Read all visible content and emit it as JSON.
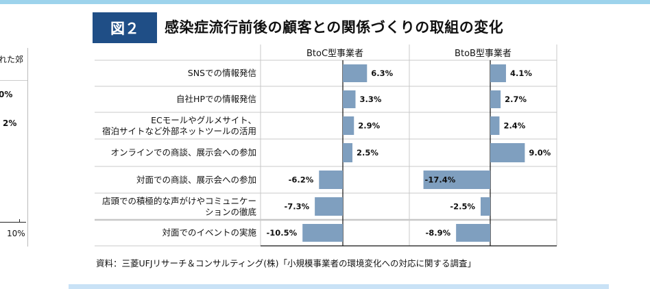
{
  "figure_label": "図２",
  "title": "感染症流行前後の顧客との関係づくりの取組の変化",
  "source": "資料：三菱UFJリサーチ＆コンサルティング(株)「小規模事業者の環境変化への対応に関する調査」",
  "left_fragment": {
    "text1": "れた郊",
    "text2": "0%",
    "text3": "2%",
    "axis_tick": "10%",
    "colors": {
      "bar": "#7f9fbf"
    }
  },
  "colors": {
    "title_box": "#1f4e86",
    "bar": "#7f9fbf",
    "top_band": "#9dd3ec",
    "bottom_band": "#c9e2f6"
  },
  "chart_data": {
    "type": "bar",
    "orientation": "horizontal",
    "categories": [
      "SNSでの情報発信",
      "自社HPでの情報発信",
      "ECモールやグルメサイト、\n宿泊サイトなど外部ネットツールの活用",
      "オンラインでの商談、展示会への参加",
      "対面での商談、展示会への参加",
      "店頭での積極的な声がけやコミュニケー\nションの徹底",
      "対面でのイベントの実施"
    ],
    "series": [
      {
        "name": "BtoC型事業者",
        "values": [
          6.3,
          3.3,
          2.9,
          2.5,
          -6.2,
          -7.3,
          -10.5
        ],
        "labels": [
          "6.3%",
          "3.3%",
          "2.9%",
          "2.5%",
          "-6.2%",
          "-7.3%",
          "-10.5%"
        ]
      },
      {
        "name": "BtoB型事業者",
        "values": [
          4.1,
          2.7,
          2.4,
          9.0,
          -17.4,
          -2.5,
          -8.9
        ],
        "labels": [
          "4.1%",
          "2.7%",
          "2.4%",
          "9.0%",
          "-17.4%",
          "-2.5%",
          "-8.9%"
        ]
      }
    ],
    "unit": "%",
    "grid": true
  }
}
